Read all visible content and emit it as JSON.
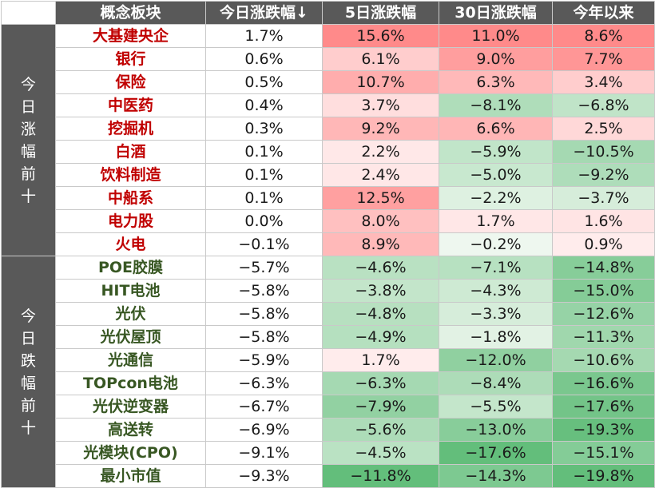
{
  "headers": [
    "概念板块",
    "今日涨跌幅↓",
    "5日涨跌幅",
    "30日涨跌幅",
    "今年以来"
  ],
  "groups": [
    {
      "label": "今日涨幅前十",
      "kind": "up",
      "rows": [
        {
          "name": "大基建央企",
          "values": [
            "1.7%",
            "15.6%",
            "11.0%",
            "8.6%"
          ]
        },
        {
          "name": "银行",
          "values": [
            "0.6%",
            "6.1%",
            "9.0%",
            "7.7%"
          ]
        },
        {
          "name": "保险",
          "values": [
            "0.5%",
            "10.7%",
            "6.3%",
            "3.4%"
          ]
        },
        {
          "name": "中医药",
          "values": [
            "0.4%",
            "3.7%",
            "−8.1%",
            "−6.8%"
          ]
        },
        {
          "name": "挖掘机",
          "values": [
            "0.3%",
            "9.2%",
            "6.6%",
            "2.5%"
          ]
        },
        {
          "name": "白酒",
          "values": [
            "0.1%",
            "2.2%",
            "−5.9%",
            "−10.5%"
          ]
        },
        {
          "name": "饮料制造",
          "values": [
            "0.1%",
            "2.4%",
            "−5.0%",
            "−9.2%"
          ]
        },
        {
          "name": "中船系",
          "values": [
            "0.1%",
            "12.5%",
            "−2.2%",
            "−3.7%"
          ]
        },
        {
          "name": "电力股",
          "values": [
            "0.0%",
            "8.0%",
            "1.7%",
            "1.6%"
          ]
        },
        {
          "name": "火电",
          "values": [
            "−0.1%",
            "8.9%",
            "−0.2%",
            "0.9%"
          ]
        }
      ]
    },
    {
      "label": "今日跌幅前十",
      "kind": "down",
      "rows": [
        {
          "name": "POE胶膜",
          "values": [
            "−5.7%",
            "−4.6%",
            "−7.1%",
            "−14.8%"
          ]
        },
        {
          "name": "HIT电池",
          "values": [
            "−5.8%",
            "−3.8%",
            "−4.3%",
            "−15.0%"
          ]
        },
        {
          "name": "光伏",
          "values": [
            "−5.8%",
            "−4.8%",
            "−3.3%",
            "−12.6%"
          ]
        },
        {
          "name": "光伏屋顶",
          "values": [
            "−5.8%",
            "−4.9%",
            "−1.8%",
            "−11.3%"
          ]
        },
        {
          "name": "光通信",
          "values": [
            "−5.9%",
            "1.7%",
            "−12.0%",
            "−10.6%"
          ]
        },
        {
          "name": "TOPcon电池",
          "values": [
            "−6.3%",
            "−6.3%",
            "−8.4%",
            "−16.6%"
          ]
        },
        {
          "name": "光伏逆变器",
          "values": [
            "−6.7%",
            "−7.9%",
            "−5.5%",
            "−17.6%"
          ]
        },
        {
          "name": "高送转",
          "values": [
            "−6.9%",
            "−5.6%",
            "−13.0%",
            "−19.3%"
          ]
        },
        {
          "name": "光模块(CPO)",
          "values": [
            "−9.1%",
            "−4.5%",
            "−17.6%",
            "−15.1%"
          ]
        },
        {
          "name": "最小市值",
          "values": [
            "−9.3%",
            "−11.8%",
            "−14.3%",
            "−19.8%"
          ]
        }
      ]
    }
  ]
}
